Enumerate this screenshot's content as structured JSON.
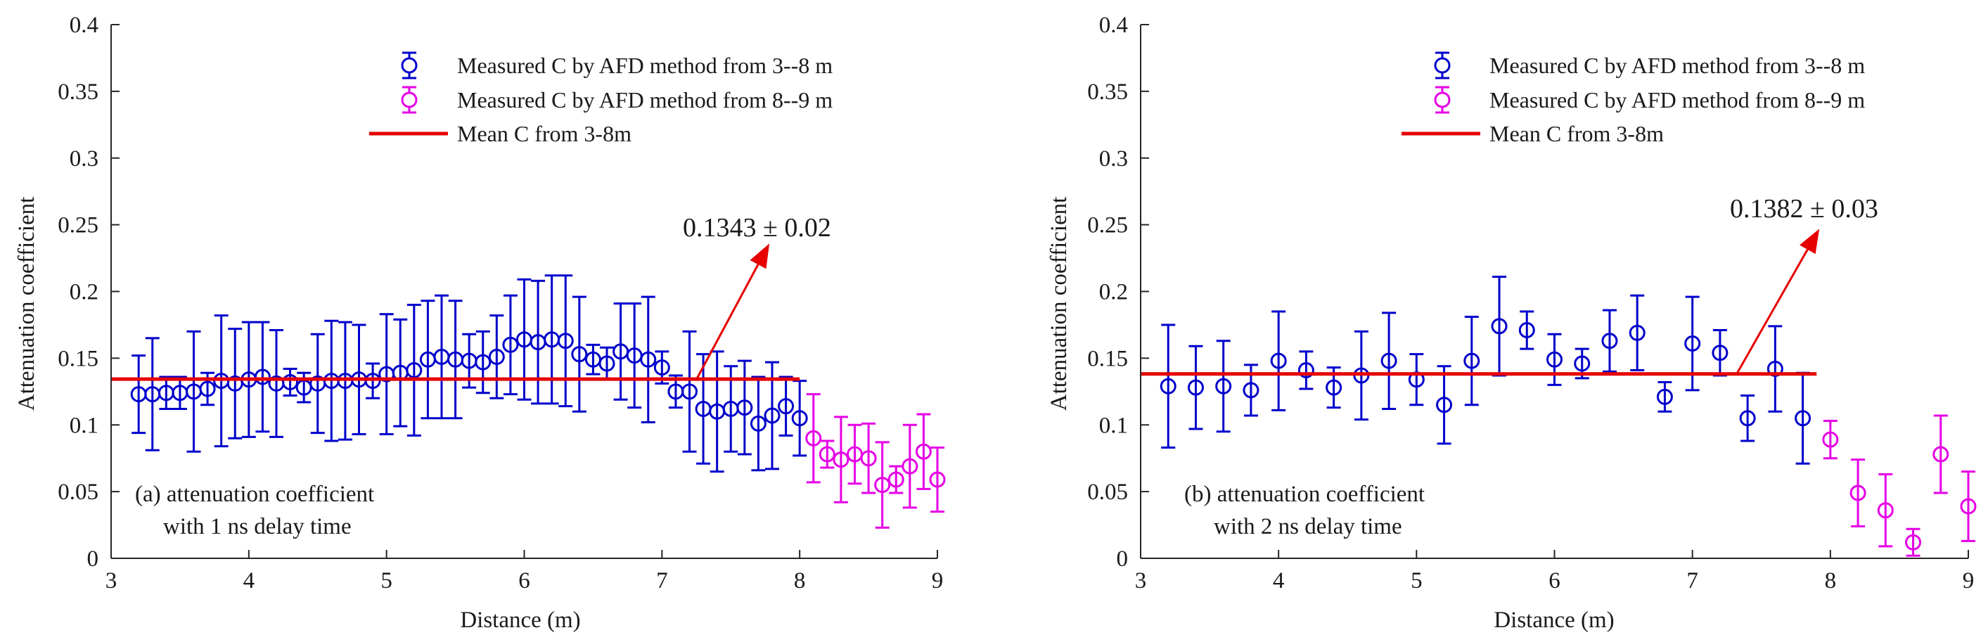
{
  "chart_data": [
    {
      "id": "a",
      "type": "scatter",
      "xlabel": "Distance (m)",
      "ylabel": "Attenuation coefficient",
      "xlim": [
        3,
        9
      ],
      "ylim": [
        0,
        0.4
      ],
      "xticks": [
        "3",
        "4",
        "5",
        "6",
        "7",
        "8",
        "9"
      ],
      "yticks": [
        "0",
        "0.05",
        "0.1",
        "0.15",
        "0.2",
        "0.25",
        "0.3",
        "0.35",
        "0.4"
      ],
      "grid": false,
      "legend_position": "top-right",
      "legend": [
        {
          "label": "Measured C by AFD method from 3--8 m",
          "color": "#0000cc",
          "marker": "circle-errorbar"
        },
        {
          "label": "Measured C by AFD method from 8--9 m",
          "color": "#e600e6",
          "marker": "circle-errorbar"
        },
        {
          "label": "Mean C from 3-8m",
          "color": "#e60000",
          "marker": "line"
        }
      ],
      "mean_line": {
        "value": 0.1343,
        "x_start": 3.0,
        "x_end": 8.0,
        "color": "#e60000"
      },
      "annotation": {
        "text": "0.1343 ± 0.02",
        "arrow_from": [
          7.25,
          0.134
        ],
        "arrow_to": [
          7.78,
          0.236
        ],
        "color": "#e60000"
      },
      "textbox": [
        "(a) attenuation coefficient",
        "with 1 ns delay time"
      ],
      "series": [
        {
          "name": "Measured C by AFD method from 3--8 m",
          "color": "#0000cc",
          "x": [
            3.2,
            3.3,
            3.4,
            3.5,
            3.6,
            3.7,
            3.8,
            3.9,
            4.0,
            4.1,
            4.2,
            4.3,
            4.4,
            4.5,
            4.6,
            4.7,
            4.8,
            4.9,
            5.0,
            5.1,
            5.2,
            5.3,
            5.4,
            5.5,
            5.6,
            5.7,
            5.8,
            5.9,
            6.0,
            6.1,
            6.2,
            6.3,
            6.4,
            6.5,
            6.6,
            6.7,
            6.8,
            6.9,
            7.0,
            7.1,
            7.2,
            7.3,
            7.4,
            7.5,
            7.6,
            7.7,
            7.8,
            7.9,
            8.0
          ],
          "y": [
            0.123,
            0.123,
            0.124,
            0.124,
            0.125,
            0.127,
            0.133,
            0.131,
            0.134,
            0.136,
            0.131,
            0.132,
            0.128,
            0.131,
            0.133,
            0.133,
            0.134,
            0.133,
            0.138,
            0.139,
            0.141,
            0.149,
            0.151,
            0.149,
            0.148,
            0.147,
            0.151,
            0.16,
            0.164,
            0.162,
            0.164,
            0.163,
            0.153,
            0.149,
            0.146,
            0.155,
            0.152,
            0.149,
            0.143,
            0.125,
            0.125,
            0.112,
            0.11,
            0.112,
            0.113,
            0.101,
            0.107,
            0.114,
            0.105
          ],
          "err": [
            0.029,
            0.042,
            0.012,
            0.012,
            0.045,
            0.012,
            0.049,
            0.041,
            0.043,
            0.041,
            0.04,
            0.01,
            0.011,
            0.037,
            0.045,
            0.044,
            0.041,
            0.013,
            0.045,
            0.04,
            0.049,
            0.044,
            0.046,
            0.044,
            0.02,
            0.023,
            0.031,
            0.037,
            0.045,
            0.046,
            0.048,
            0.049,
            0.043,
            0.011,
            0.012,
            0.036,
            0.039,
            0.047,
            0.012,
            0.012,
            0.045,
            0.041,
            0.045,
            0.032,
            0.035,
            0.035,
            0.04,
            0.022,
            0.028
          ]
        },
        {
          "name": "Measured C by AFD method from 8--9 m",
          "color": "#e600e6",
          "x": [
            8.1,
            8.2,
            8.3,
            8.4,
            8.5,
            8.6,
            8.7,
            8.8,
            8.9,
            9.0
          ],
          "y": [
            0.09,
            0.078,
            0.074,
            0.078,
            0.075,
            0.055,
            0.059,
            0.069,
            0.08,
            0.059
          ],
          "err": [
            0.033,
            0.01,
            0.032,
            0.022,
            0.026,
            0.032,
            0.01,
            0.031,
            0.028,
            0.024
          ]
        }
      ]
    },
    {
      "id": "b",
      "type": "scatter",
      "xlabel": "Distance (m)",
      "ylabel": "Attenuation coefficient",
      "xlim": [
        3,
        9
      ],
      "ylim": [
        0,
        0.4
      ],
      "xticks": [
        "3",
        "4",
        "5",
        "6",
        "7",
        "8",
        "9"
      ],
      "yticks": [
        "0",
        "0.05",
        "0.1",
        "0.15",
        "0.2",
        "0.25",
        "0.3",
        "0.35",
        "0.4"
      ],
      "grid": false,
      "legend_position": "top-right",
      "legend": [
        {
          "label": "Measured C by AFD method from 3--8 m",
          "color": "#0000cc",
          "marker": "circle-errorbar"
        },
        {
          "label": "Measured C by AFD method from 8--9 m",
          "color": "#e600e6",
          "marker": "circle-errorbar"
        },
        {
          "label": "Mean C from 3-8m",
          "color": "#e60000",
          "marker": "line"
        }
      ],
      "mean_line": {
        "value": 0.1382,
        "x_start": 3.0,
        "x_end": 7.9,
        "color": "#e60000"
      },
      "annotation": {
        "text": "0.1382 ± 0.03",
        "arrow_from": [
          7.32,
          0.138
        ],
        "arrow_to": [
          7.92,
          0.247
        ],
        "color": "#e60000"
      },
      "textbox": [
        "(b) attenuation coefficient",
        "with 2 ns delay time"
      ],
      "series": [
        {
          "name": "Measured C by AFD method from 3--8 m",
          "color": "#0000cc",
          "x": [
            3.2,
            3.4,
            3.6,
            3.8,
            4.0,
            4.2,
            4.4,
            4.6,
            4.8,
            5.0,
            5.2,
            5.4,
            5.6,
            5.8,
            6.0,
            6.2,
            6.4,
            6.6,
            6.8,
            7.0,
            7.2,
            7.4,
            7.6,
            7.8
          ],
          "y": [
            0.129,
            0.128,
            0.129,
            0.126,
            0.148,
            0.141,
            0.128,
            0.137,
            0.148,
            0.134,
            0.115,
            0.148,
            0.174,
            0.171,
            0.149,
            0.146,
            0.163,
            0.169,
            0.121,
            0.161,
            0.154,
            0.105,
            0.142,
            0.105
          ],
          "err": [
            0.046,
            0.031,
            0.034,
            0.019,
            0.037,
            0.014,
            0.015,
            0.033,
            0.036,
            0.019,
            0.029,
            0.033,
            0.037,
            0.014,
            0.019,
            0.011,
            0.023,
            0.028,
            0.011,
            0.035,
            0.017,
            0.017,
            0.032,
            0.034
          ]
        },
        {
          "name": "Measured C by AFD method from 8--9 m",
          "color": "#e600e6",
          "x": [
            8.0,
            8.2,
            8.4,
            8.6,
            8.8,
            9.0
          ],
          "y": [
            0.089,
            0.049,
            0.036,
            0.012,
            0.078,
            0.039
          ],
          "err": [
            0.014,
            0.025,
            0.027,
            0.01,
            0.029,
            0.026
          ]
        }
      ]
    }
  ]
}
